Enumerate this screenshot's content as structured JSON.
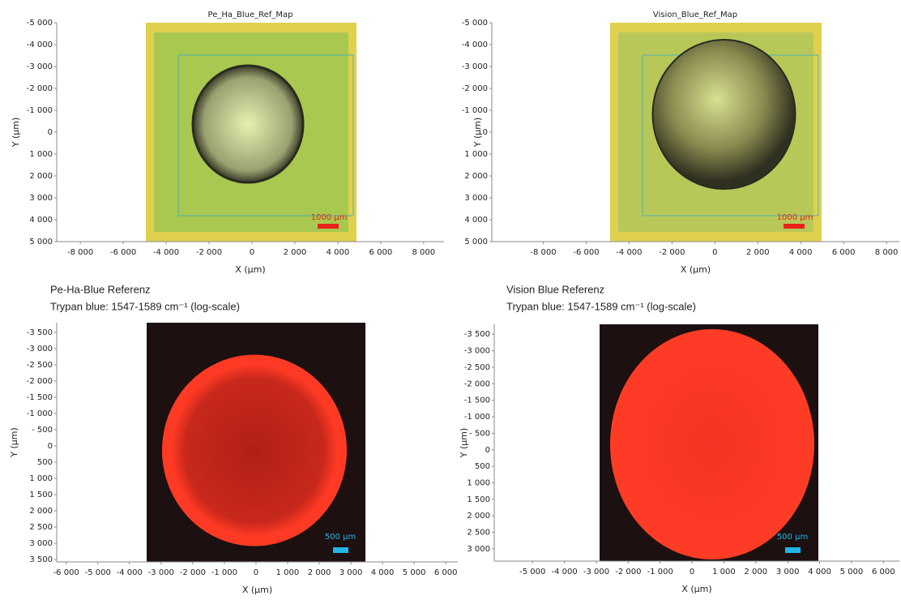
{
  "chart_data": [
    {
      "type": "image",
      "title": "Pe_Ha_Blue_Ref_Map",
      "xlabel": "X (µm)",
      "ylabel": "Y (µm)",
      "scale_bar": "1000 µm",
      "xlim": [
        -9100,
        8950
      ],
      "ylim": [
        5000,
        -5000
      ],
      "xticks": [
        {
          "value": -8000,
          "label": "-8 000"
        },
        {
          "value": -6000,
          "label": "-6 000"
        },
        {
          "value": -4000,
          "label": "-4 000"
        },
        {
          "value": -2000,
          "label": "-2 000"
        },
        0,
        {
          "value": 2000,
          "label": "2 000"
        },
        {
          "value": 4000,
          "label": "4 000"
        },
        {
          "value": 6000,
          "label": "6 000"
        },
        {
          "value": 8000,
          "label": "8 000"
        }
      ],
      "yticks": [
        {
          "value": -5000,
          "label": "-5 000"
        },
        {
          "value": -4000,
          "label": "-4 000"
        },
        {
          "value": -3000,
          "label": "-3 000"
        },
        {
          "value": -2000,
          "label": "-2 000"
        },
        {
          "value": -1000,
          "label": "-1 000"
        },
        0,
        {
          "value": 1000,
          "label": "1 000"
        },
        {
          "value": 2000,
          "label": "2 000"
        },
        {
          "value": 3000,
          "label": "3 000"
        },
        {
          "value": 4000,
          "label": "4 000"
        },
        {
          "value": 5000,
          "label": "5 000"
        }
      ]
    },
    {
      "type": "image",
      "title": "Vision_Blue_Ref_Map",
      "xlabel": "X (µm)",
      "ylabel": "Y (µm)",
      "scale_bar": "1000 µm",
      "xlim": [
        -10400,
        8600
      ],
      "ylim": [
        5000,
        -5000
      ],
      "xticks": [
        {
          "value": -8000,
          "label": "-8 000"
        },
        {
          "value": -6000,
          "label": "-6 000"
        },
        {
          "value": -4000,
          "label": "-4 000"
        },
        {
          "value": -2000,
          "label": "-2 000"
        },
        0,
        {
          "value": 2000,
          "label": "2 000"
        },
        {
          "value": 4000,
          "label": "4 000"
        },
        {
          "value": 6000,
          "label": "6 000"
        },
        {
          "value": 8000,
          "label": "8 000"
        }
      ],
      "yticks": [
        {
          "value": -5000,
          "label": "-5 000"
        },
        {
          "value": -4000,
          "label": "-4 000"
        },
        {
          "value": -3000,
          "label": "-3 000"
        },
        {
          "value": -2000,
          "label": "-2 000"
        },
        {
          "value": -1000,
          "label": "-1 000"
        },
        0,
        {
          "value": 1000,
          "label": "1 000"
        },
        {
          "value": 2000,
          "label": "2 000"
        },
        {
          "value": 3000,
          "label": "3 000"
        },
        {
          "value": 4000,
          "label": "4 000"
        },
        {
          "value": 5000,
          "label": "5 000"
        }
      ]
    },
    {
      "type": "image",
      "title": "Pe-Ha-Blue Referenz",
      "subtitle": "Trypan blue: 1547-1589 cm⁻¹ (log-scale)",
      "xlabel": "X (µm)",
      "ylabel": "Y (µm)",
      "scale_bar": "500 µm",
      "xlim": [
        -6300,
        6380
      ],
      "ylim": [
        3575,
        -3800
      ],
      "xticks": [
        {
          "value": -6000,
          "label": "-6 000"
        },
        {
          "value": -5000,
          "label": "-5 000"
        },
        {
          "value": -4000,
          "label": "-4 000"
        },
        {
          "value": -3000,
          "label": "-3 000"
        },
        {
          "value": -2000,
          "label": "-2 000"
        },
        {
          "value": -1000,
          "label": "-1 000"
        },
        0,
        {
          "value": 1000,
          "label": "1 000"
        },
        {
          "value": 2000,
          "label": "2 000"
        },
        {
          "value": 3000,
          "label": "3 000"
        },
        {
          "value": 4000,
          "label": "4 000"
        },
        {
          "value": 5000,
          "label": "5 000"
        },
        {
          "value": 6000,
          "label": "6 000"
        }
      ],
      "yticks": [
        {
          "value": -3500,
          "label": "-3 500"
        },
        {
          "value": -3000,
          "label": "-3 000"
        },
        {
          "value": -2500,
          "label": "-2 500"
        },
        {
          "value": -2000,
          "label": "-2 000"
        },
        {
          "value": -1500,
          "label": "-1 500"
        },
        {
          "value": -1000,
          "label": "-1 000"
        },
        {
          "value": -500,
          "label": "- 500"
        },
        0,
        500,
        {
          "value": 1000,
          "label": "1 000"
        },
        {
          "value": 1500,
          "label": "1 500"
        },
        {
          "value": 2000,
          "label": "2 000"
        },
        {
          "value": 2500,
          "label": "2 500"
        },
        {
          "value": 3000,
          "label": "3 000"
        },
        {
          "value": 3500,
          "label": "3 500"
        }
      ]
    },
    {
      "type": "image",
      "title": "Vision Blue Referenz",
      "subtitle": "Trypan blue: 1547-1589 cm⁻¹ (log-scale)",
      "xlabel": "X (µm)",
      "ylabel": "Y (µm)",
      "scale_bar": "500 µm",
      "xlim": [
        -6200,
        6500
      ],
      "ylim": [
        3370,
        -3800
      ],
      "xticks": [
        {
          "value": -5000,
          "label": "-5 000"
        },
        {
          "value": -4000,
          "label": "-4 000"
        },
        {
          "value": -3000,
          "label": "-3 000"
        },
        {
          "value": -2000,
          "label": "-2 000"
        },
        {
          "value": -1000,
          "label": "-1 000"
        },
        0,
        {
          "value": 1000,
          "label": "1 000"
        },
        {
          "value": 2000,
          "label": "2 000"
        },
        {
          "value": 3000,
          "label": "3 000"
        },
        {
          "value": 4000,
          "label": "4 000"
        },
        {
          "value": 5000,
          "label": "5 000"
        },
        {
          "value": 6000,
          "label": "6 000"
        }
      ],
      "yticks": [
        {
          "value": -3500,
          "label": "-3 500"
        },
        {
          "value": -3000,
          "label": "-3 000"
        },
        {
          "value": -2500,
          "label": "-2 500"
        },
        {
          "value": -2000,
          "label": "-2 000"
        },
        {
          "value": -1500,
          "label": "-1 500"
        },
        {
          "value": -1000,
          "label": "-1 000"
        },
        {
          "value": -500,
          "label": "- 500"
        },
        0,
        500,
        {
          "value": 1000,
          "label": "1 000"
        },
        {
          "value": 1500,
          "label": "1 500"
        },
        {
          "value": 2000,
          "label": "2 000"
        },
        {
          "value": 2500,
          "label": "2 500"
        },
        {
          "value": 3000,
          "label": "3 000"
        }
      ]
    }
  ]
}
